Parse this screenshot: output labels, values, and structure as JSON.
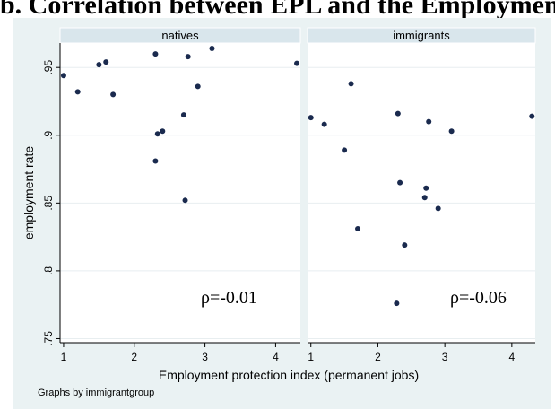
{
  "title": "b. Correlation between EPL and the Employment",
  "chart_data": {
    "type": "scatter",
    "xlabel": "Employment protection index (permanent jobs)",
    "ylabel": "employment rate",
    "xticks": [
      "1",
      "2",
      "3",
      "4"
    ],
    "yticks": [
      ".75",
      ".8",
      ".85",
      ".9",
      ".95"
    ],
    "xlim": [
      0.95,
      4.35
    ],
    "ylim": [
      0.747,
      0.968
    ],
    "grid": true,
    "note": "Graphs by immigrantgroup",
    "marker_color": "#1a2a4e",
    "panels": [
      {
        "name": "natives",
        "annotation": "ρ=-0.01",
        "points": [
          [
            1.0,
            0.944
          ],
          [
            1.2,
            0.932
          ],
          [
            1.5,
            0.952
          ],
          [
            1.6,
            0.954
          ],
          [
            1.7,
            0.93
          ],
          [
            2.3,
            0.96
          ],
          [
            2.3,
            0.881
          ],
          [
            2.33,
            0.901
          ],
          [
            2.4,
            0.903
          ],
          [
            2.7,
            0.915
          ],
          [
            2.72,
            0.852
          ],
          [
            2.76,
            0.958
          ],
          [
            2.9,
            0.936
          ],
          [
            3.1,
            0.964
          ],
          [
            4.3,
            0.953
          ]
        ]
      },
      {
        "name": "immigrants",
        "annotation": "ρ=-0.06",
        "points": [
          [
            1.0,
            0.913
          ],
          [
            1.2,
            0.908
          ],
          [
            1.5,
            0.889
          ],
          [
            1.6,
            0.938
          ],
          [
            1.7,
            0.831
          ],
          [
            2.28,
            0.776
          ],
          [
            2.3,
            0.916
          ],
          [
            2.33,
            0.865
          ],
          [
            2.4,
            0.819
          ],
          [
            2.7,
            0.854
          ],
          [
            2.72,
            0.861
          ],
          [
            2.76,
            0.91
          ],
          [
            2.9,
            0.846
          ],
          [
            3.1,
            0.903
          ],
          [
            4.3,
            0.914
          ]
        ]
      }
    ]
  }
}
